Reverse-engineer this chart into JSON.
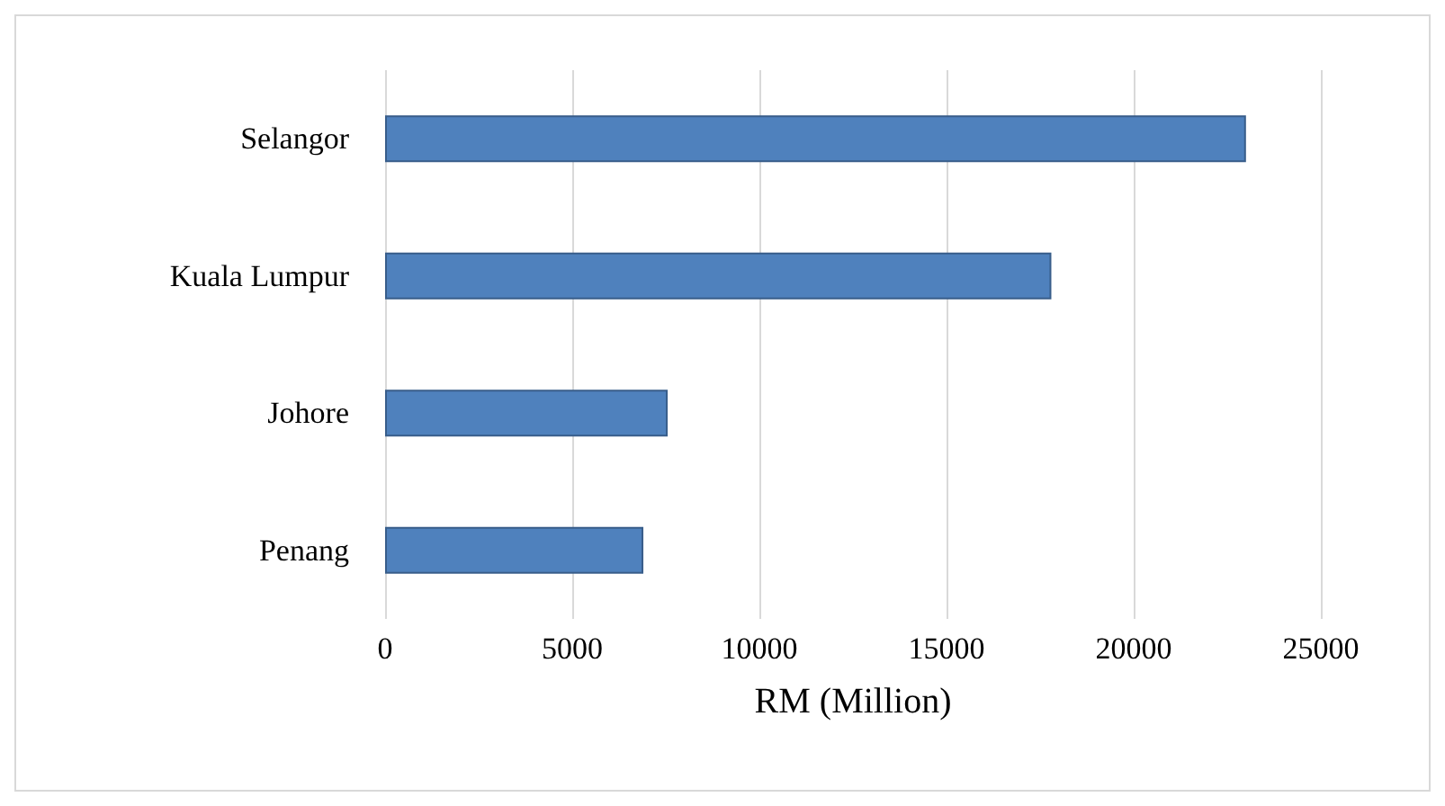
{
  "chart_data": {
    "type": "bar",
    "orientation": "horizontal",
    "categories": [
      "Selangor",
      "Kuala Lumpur",
      "Johore",
      "Penang"
    ],
    "values": [
      23000,
      17800,
      7550,
      6900
    ],
    "color": "#4f81bd",
    "xlabel": "RM (Million)",
    "xlim": [
      0,
      25000
    ],
    "xticks": [
      0,
      5000,
      10000,
      15000,
      20000,
      25000
    ],
    "grid": "x"
  }
}
